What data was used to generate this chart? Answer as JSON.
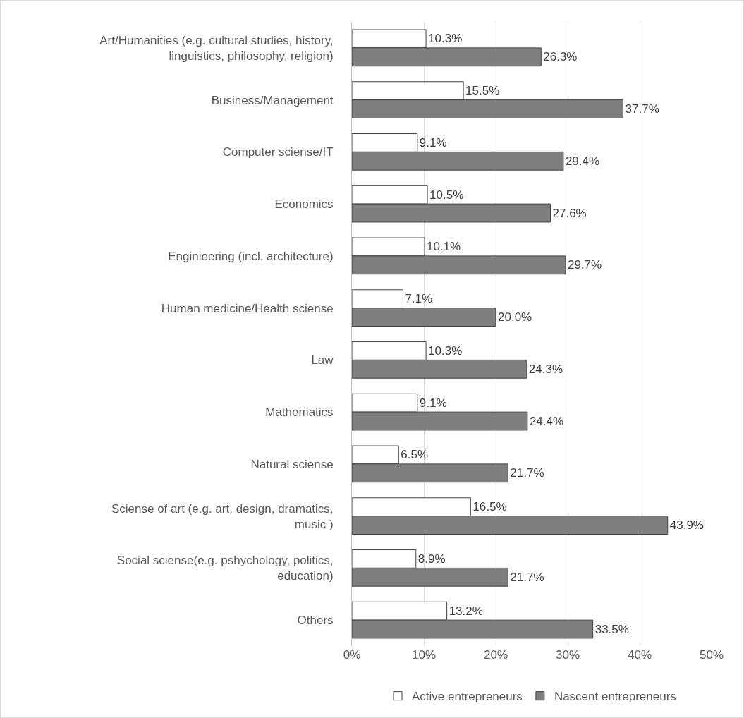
{
  "chart_data": {
    "type": "bar",
    "orientation": "horizontal",
    "categories": [
      "Art/Humanities (e.g. cultural studies, history, linguistics, philosophy, religion)",
      "Business/Management",
      "Computer sciense/IT",
      "Economics",
      "Enginieering (incl. architecture)",
      "Human medicine/Health sciense",
      "Law",
      "Mathematics",
      "Natural sciense",
      "Sciense of art (e.g. art, design, dramatics, music )",
      "Social sciense(e.g. pshychology, politics, education)",
      "Others"
    ],
    "series": [
      {
        "name": "Active entrepreneurs",
        "color": "#ffffff",
        "values": [
          10.3,
          15.5,
          9.1,
          10.5,
          10.1,
          7.1,
          10.3,
          9.1,
          6.5,
          16.5,
          8.9,
          13.2
        ],
        "value_labels": [
          "10.3%",
          "15.5%",
          "9.1%",
          "10.5%",
          "10.1%",
          "7.1%",
          "10.3%",
          "9.1%",
          "6.5%",
          "16.5%",
          "8.9%",
          "13.2%"
        ]
      },
      {
        "name": "Nascent entrepreneurs",
        "color": "#7f7f7f",
        "values": [
          26.3,
          37.7,
          29.4,
          27.6,
          29.7,
          20.0,
          24.3,
          24.4,
          21.7,
          43.9,
          21.7,
          33.5
        ],
        "value_labels": [
          "26.3%",
          "37.7%",
          "29.4%",
          "27.6%",
          "29.7%",
          "20.0%",
          "24.3%",
          "24.4%",
          "21.7%",
          "43.9%",
          "21.7%",
          "33.5%"
        ]
      }
    ],
    "xlim": [
      0,
      50
    ],
    "xticks": [
      {
        "value": 0,
        "label": "0%"
      },
      {
        "value": 10,
        "label": "10%"
      },
      {
        "value": 20,
        "label": "20%"
      },
      {
        "value": 30,
        "label": "30%"
      },
      {
        "value": 40,
        "label": "40%"
      },
      {
        "value": 50,
        "label": "50%"
      }
    ],
    "grid": "x",
    "legend": "bottom"
  }
}
